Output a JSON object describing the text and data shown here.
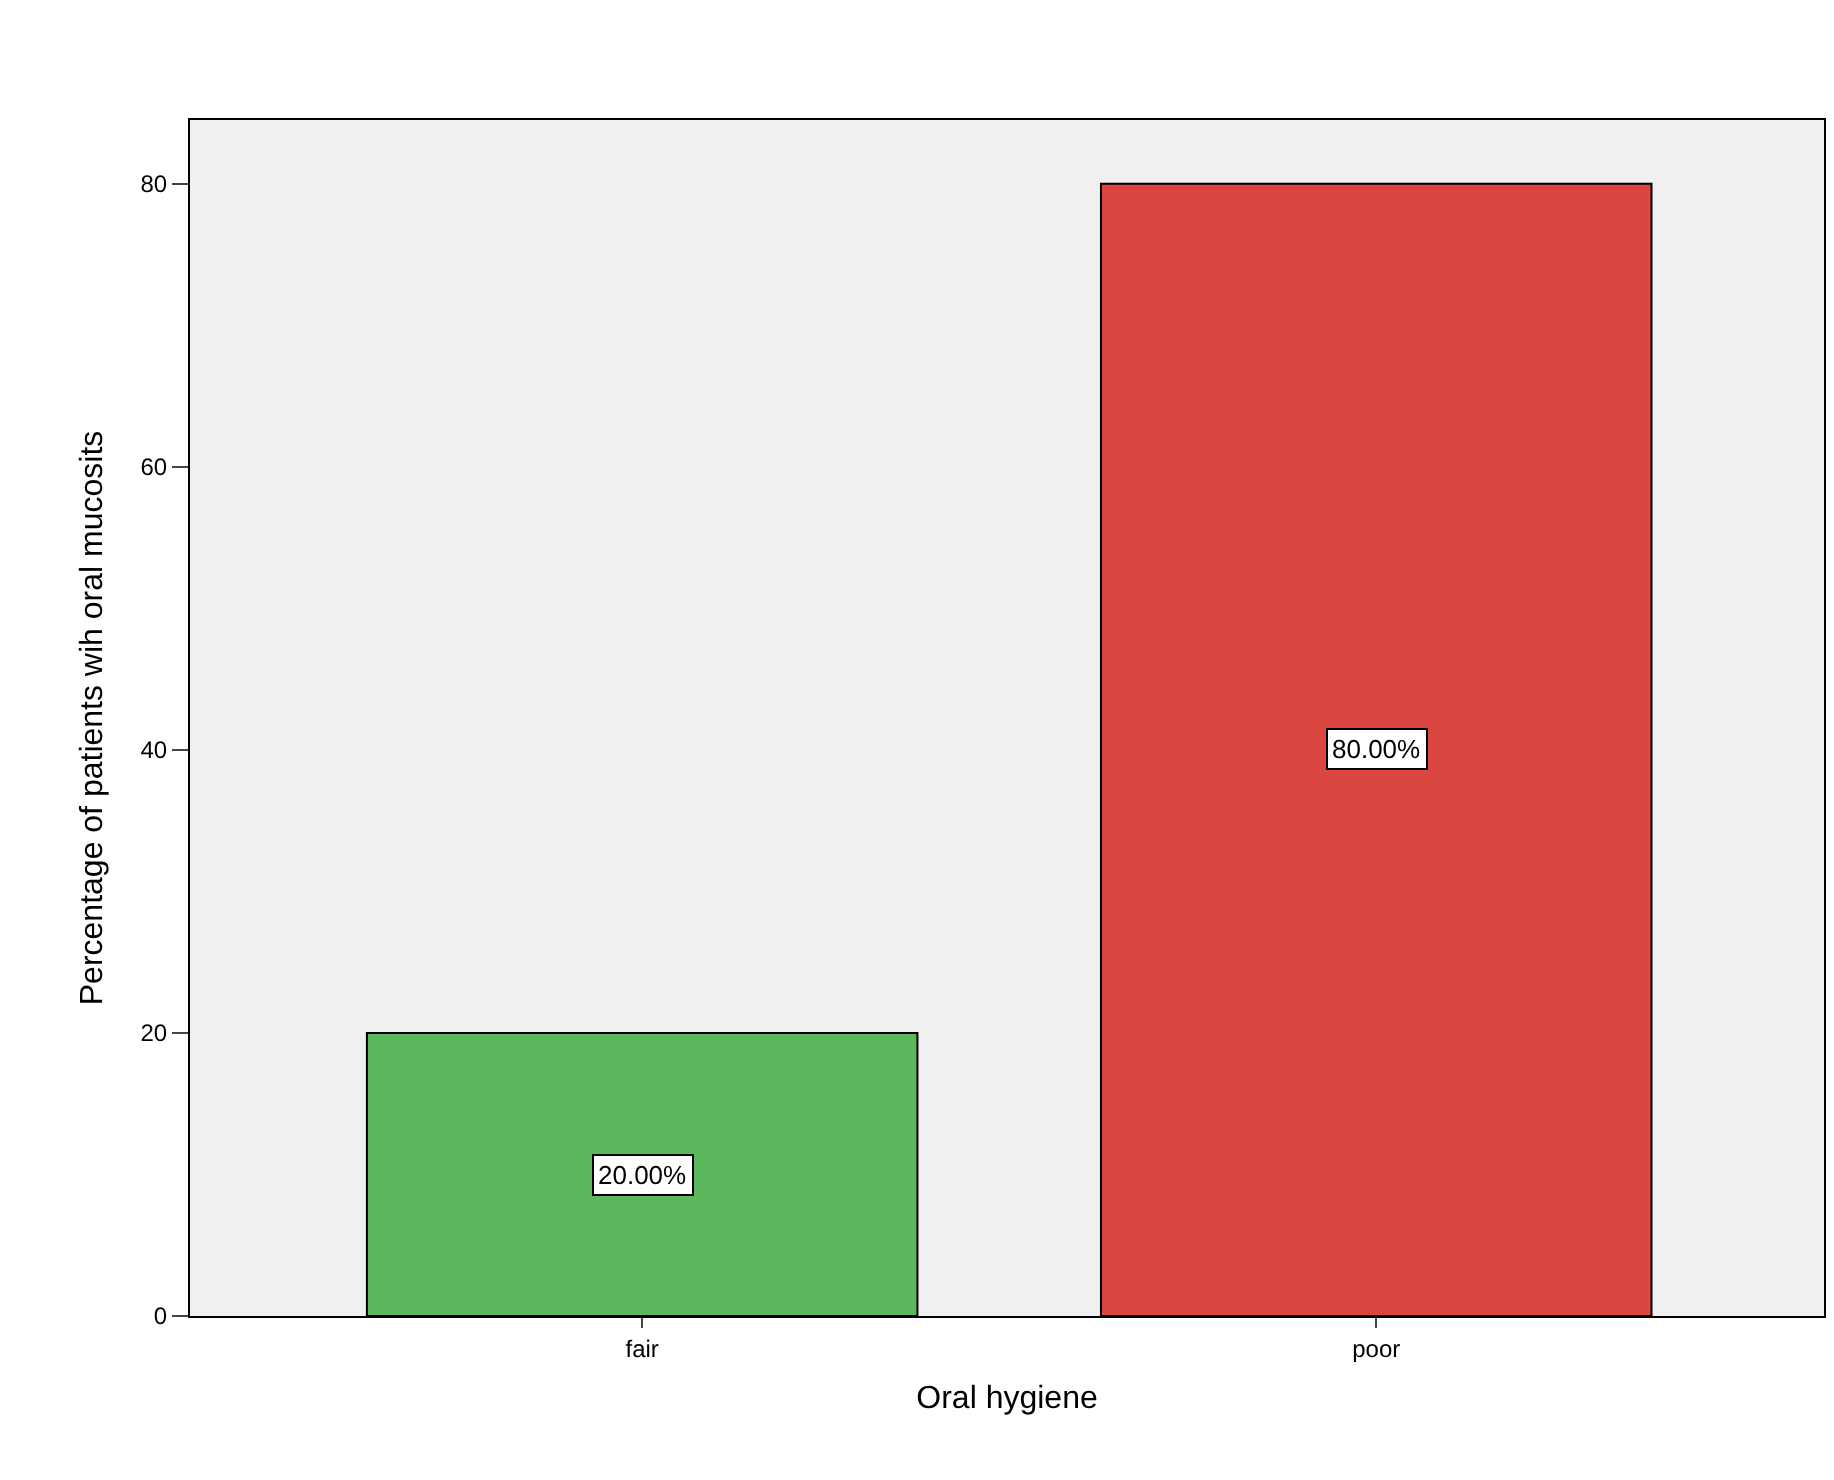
{
  "chart_data": {
    "type": "bar",
    "xlabel": "Oral hygiene",
    "ylabel": "Percentage of patients wih oral mucosits",
    "categories": [
      "fair",
      "poor"
    ],
    "values": [
      20,
      80
    ],
    "colors": [
      "#5cb85c",
      "#dc4641"
    ],
    "value_labels": [
      "20.00%",
      "80.00%"
    ],
    "ylim": [
      0,
      84.5
    ],
    "yticks": [
      0,
      20,
      40,
      60,
      80
    ],
    "grid": false,
    "legend": false
  }
}
